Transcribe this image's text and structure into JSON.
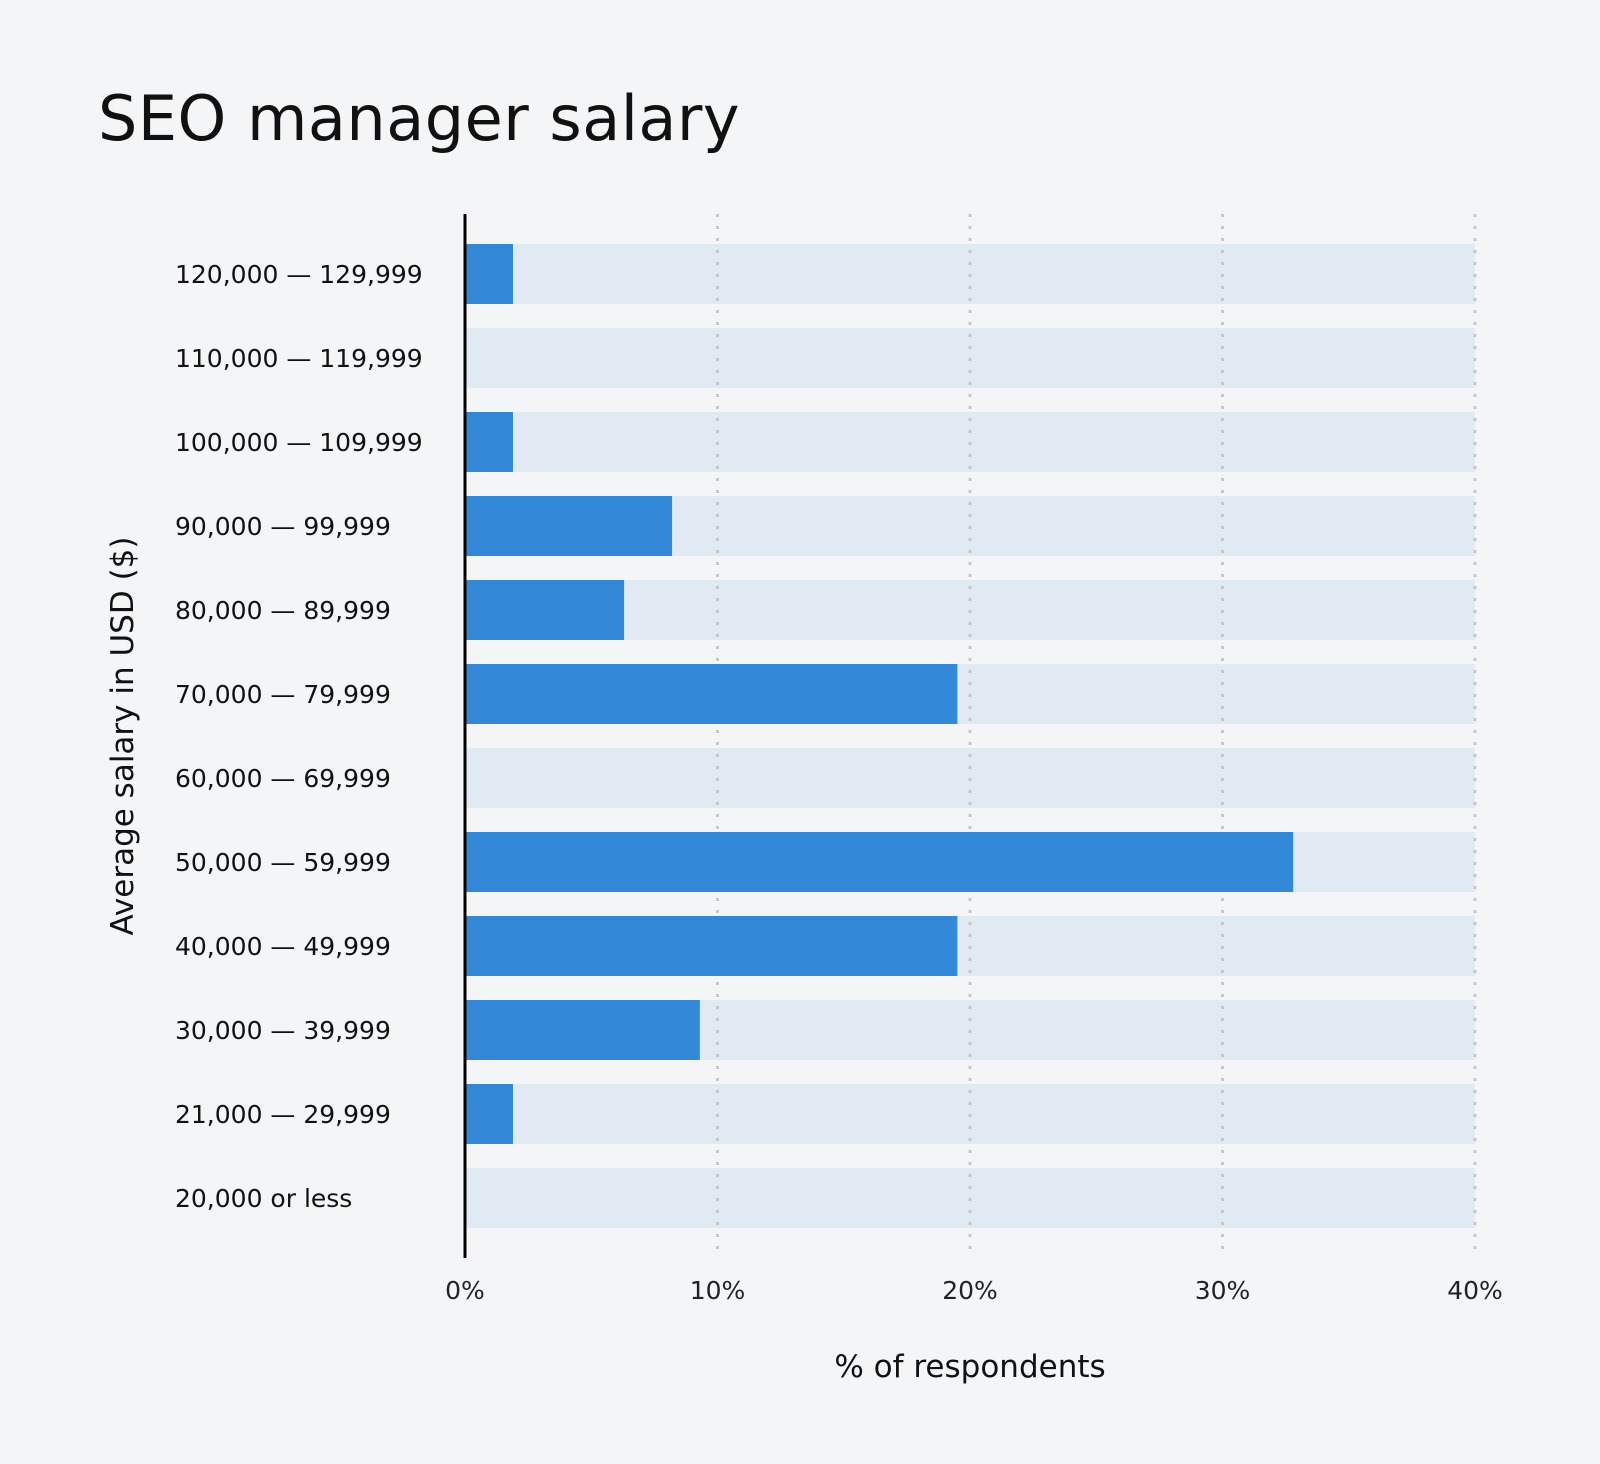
{
  "title": "SEO manager salary",
  "chart_data": {
    "type": "bar",
    "orientation": "horizontal",
    "title": "SEO manager salary",
    "xlabel": "% of respondents",
    "ylabel": "Average salary in USD ($)",
    "xlim": [
      0,
      40
    ],
    "xticks": [
      "0%",
      "10%",
      "20%",
      "30%",
      "40%"
    ],
    "grid": "vertical dotted",
    "colors": {
      "bar": "#3388d8",
      "track": "#e1e9f2",
      "grid": "#c4c8cc",
      "background": "#f3f5f7"
    },
    "categories": [
      "120,000 — 129,999",
      "110,000 — 119,999",
      "100,000 — 109,999",
      "90,000 — 99,999",
      "80,000 — 89,999",
      "70,000 — 79,999",
      "60,000 — 69,999",
      "50,000 — 59,999",
      "40,000 — 49,999",
      "30,000 — 39,999",
      "21,000 — 29,999",
      "20,000 or less"
    ],
    "values": [
      1.9,
      0,
      1.9,
      8.2,
      6.3,
      19.5,
      0,
      32.8,
      19.5,
      9.3,
      1.9,
      0
    ]
  }
}
